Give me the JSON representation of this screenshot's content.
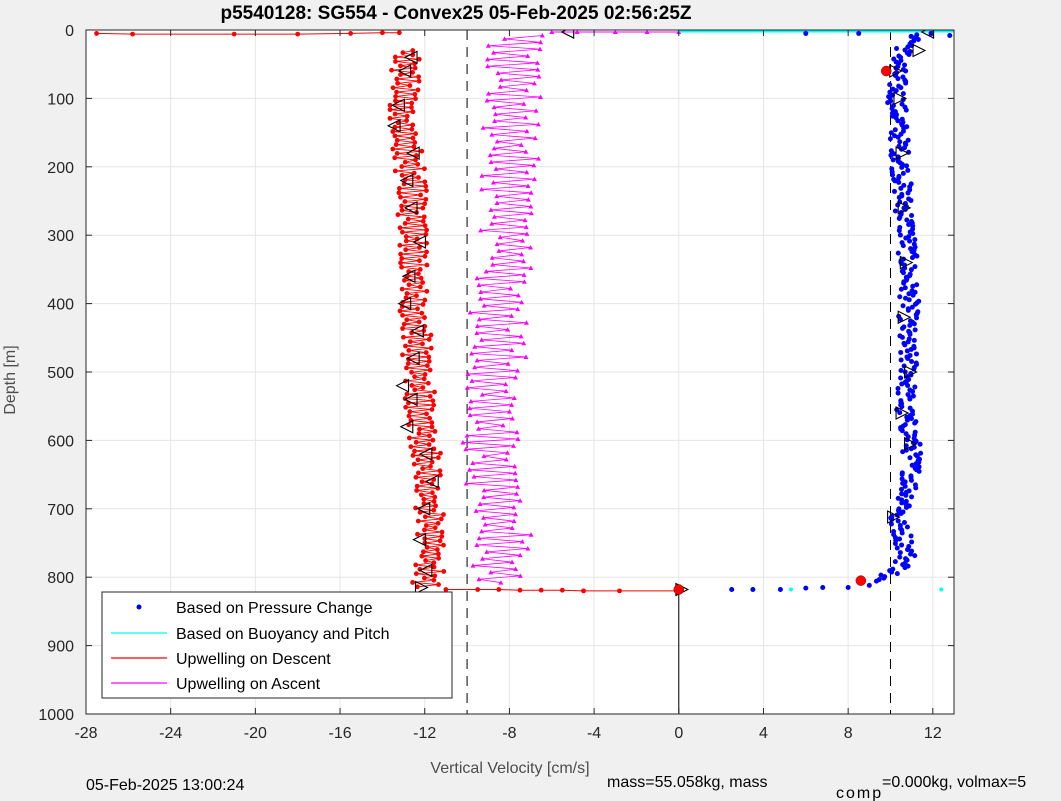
{
  "chart_data": {
    "type": "scatter",
    "title": "p5540128: SG554 - Convex25 05-Feb-2025 02:56:25Z",
    "xlabel": "Vertical Velocity [cm/s]",
    "ylabel": "Depth [m]",
    "xlim": [
      -28,
      13
    ],
    "ylim": [
      1000,
      0
    ],
    "y_reversed": true,
    "grid": true,
    "x_ticks": [
      -28,
      -24,
      -20,
      -16,
      -12,
      -8,
      -4,
      0,
      4,
      8,
      12
    ],
    "y_ticks": [
      0,
      100,
      200,
      300,
      400,
      500,
      600,
      700,
      800,
      900,
      1000
    ],
    "legend_position": "bottom-left",
    "reference_lines": {
      "dashed_x": [
        -10,
        10
      ],
      "solid_x": [
        {
          "x": 0,
          "from_depth": 818,
          "to_depth": 1000
        }
      ]
    },
    "series": [
      {
        "name": "Based on Pressure Change",
        "color": "#0000ff",
        "style": "points",
        "profile": [
          [
            5,
            11.5
          ],
          [
            30,
            10.6
          ],
          [
            60,
            10.3
          ],
          [
            100,
            10.3
          ],
          [
            150,
            10.4
          ],
          [
            200,
            10.5
          ],
          [
            250,
            10.6
          ],
          [
            300,
            10.8
          ],
          [
            350,
            10.8
          ],
          [
            400,
            10.9
          ],
          [
            450,
            10.7
          ],
          [
            500,
            10.9
          ],
          [
            550,
            10.6
          ],
          [
            600,
            11.0
          ],
          [
            650,
            11.0
          ],
          [
            700,
            10.7
          ],
          [
            712,
            10.2
          ],
          [
            740,
            10.6
          ],
          [
            770,
            10.8
          ],
          [
            790,
            10.4
          ],
          [
            805,
            9.2
          ]
        ],
        "surface_points": [
          [
            5,
            6.0
          ],
          [
            5,
            8.5
          ],
          [
            8,
            12.8
          ]
        ],
        "bottom_points": [
          [
            818,
            2.5
          ],
          [
            818,
            3.5
          ],
          [
            818,
            4.8
          ],
          [
            816,
            6.0
          ],
          [
            815,
            6.8
          ],
          [
            815,
            8.0
          ],
          [
            812,
            9.0
          ]
        ],
        "jitter": 0.45
      },
      {
        "name": "Based on Buoyancy and Pitch",
        "color": "#00ffff",
        "style": "line",
        "segments": [
          [
            [
              0,
              0
            ],
            [
              0,
              818
            ]
          ],
          [
            [
              0,
              818
            ],
            [
              13,
              818
            ]
          ]
        ]
      },
      {
        "name": "Upwelling on Descent",
        "color": "#ff0000",
        "style": "line+points",
        "profile": [
          [
            40,
            -12.8
          ],
          [
            80,
            -13.0
          ],
          [
            120,
            -13.1
          ],
          [
            160,
            -12.9
          ],
          [
            200,
            -12.7
          ],
          [
            250,
            -12.6
          ],
          [
            300,
            -12.6
          ],
          [
            350,
            -12.5
          ],
          [
            400,
            -12.6
          ],
          [
            450,
            -12.4
          ],
          [
            500,
            -12.3
          ],
          [
            550,
            -12.2
          ],
          [
            600,
            -12.0
          ],
          [
            650,
            -11.9
          ],
          [
            700,
            -11.8
          ],
          [
            750,
            -11.7
          ],
          [
            800,
            -11.8
          ],
          [
            815,
            -12.0
          ]
        ],
        "surface_streak": [
          [
            5,
            -27.5
          ],
          [
            6,
            -25.8
          ],
          [
            6,
            -21.0
          ],
          [
            6,
            -18.0
          ],
          [
            5,
            -15.5
          ],
          [
            4,
            -14.0
          ],
          [
            4,
            -13.2
          ]
        ],
        "bottom_streak": [
          [
            818,
            -11.0
          ],
          [
            818,
            -9.5
          ],
          [
            818,
            -8.5
          ],
          [
            819,
            -7.5
          ],
          [
            819,
            -6.5
          ],
          [
            819,
            -5.5
          ],
          [
            820,
            -4.5
          ],
          [
            820,
            -2.8
          ],
          [
            820,
            0.0
          ]
        ],
        "jitter": 0.55
      },
      {
        "name": "Upwelling on Ascent",
        "color": "#ff00ff",
        "style": "line+points",
        "profile": [
          [
            10,
            -7.5
          ],
          [
            50,
            -7.8
          ],
          [
            100,
            -7.8
          ],
          [
            150,
            -8.0
          ],
          [
            200,
            -8.0
          ],
          [
            250,
            -8.1
          ],
          [
            300,
            -8.0
          ],
          [
            350,
            -8.2
          ],
          [
            400,
            -8.5
          ],
          [
            450,
            -8.5
          ],
          [
            500,
            -8.7
          ],
          [
            550,
            -8.6
          ],
          [
            600,
            -8.8
          ],
          [
            650,
            -8.8
          ],
          [
            700,
            -8.5
          ],
          [
            750,
            -8.3
          ],
          [
            800,
            -8.5
          ],
          [
            810,
            -9.0
          ]
        ],
        "top_streak": [
          [
            3,
            -6.0
          ],
          [
            3,
            -4.8
          ],
          [
            3,
            -3.0
          ],
          [
            3,
            -1.5
          ],
          [
            3,
            0.0
          ]
        ],
        "jitter": 1.0
      }
    ],
    "markers": {
      "triangles_left": [
        [
          40,
          -12.6
        ],
        [
          60,
          -12.9
        ],
        [
          110,
          -13.2
        ],
        [
          140,
          -13.4
        ],
        [
          180,
          -12.5
        ],
        [
          220,
          -12.8
        ],
        [
          260,
          -12.6
        ],
        [
          310,
          -12.2
        ],
        [
          360,
          -12.7
        ],
        [
          400,
          -12.9
        ],
        [
          440,
          -12.3
        ],
        [
          480,
          -12.5
        ],
        [
          520,
          -13.0
        ],
        [
          540,
          -12.6
        ],
        [
          580,
          -12.8
        ],
        [
          620,
          -11.9
        ],
        [
          660,
          -11.6
        ],
        [
          700,
          -12.0
        ],
        [
          745,
          -12.2
        ],
        [
          790,
          -11.9
        ],
        [
          3,
          -5.2
        ],
        [
          3,
          11.8
        ]
      ],
      "triangles_right": [
        [
          30,
          11.3
        ],
        [
          100,
          10.4
        ],
        [
          180,
          10.5
        ],
        [
          260,
          10.6
        ],
        [
          340,
          10.7
        ],
        [
          420,
          10.6
        ],
        [
          500,
          10.9
        ],
        [
          560,
          10.5
        ],
        [
          605,
          10.9
        ],
        [
          712,
          10.1
        ],
        [
          60,
          10.2
        ],
        [
          815,
          -12.2
        ],
        [
          818,
          0.1
        ]
      ],
      "red_circles": [
        [
          60,
          9.8
        ],
        [
          805,
          8.6
        ],
        [
          818,
          0.0
        ]
      ]
    }
  },
  "footer": {
    "timestamp": "05-Feb-2025 13:00:24",
    "mass_text": "mass=55.058kg, mass",
    "comp_sub": "comp",
    "comp_text": "=0.000kg, volmax=5"
  }
}
